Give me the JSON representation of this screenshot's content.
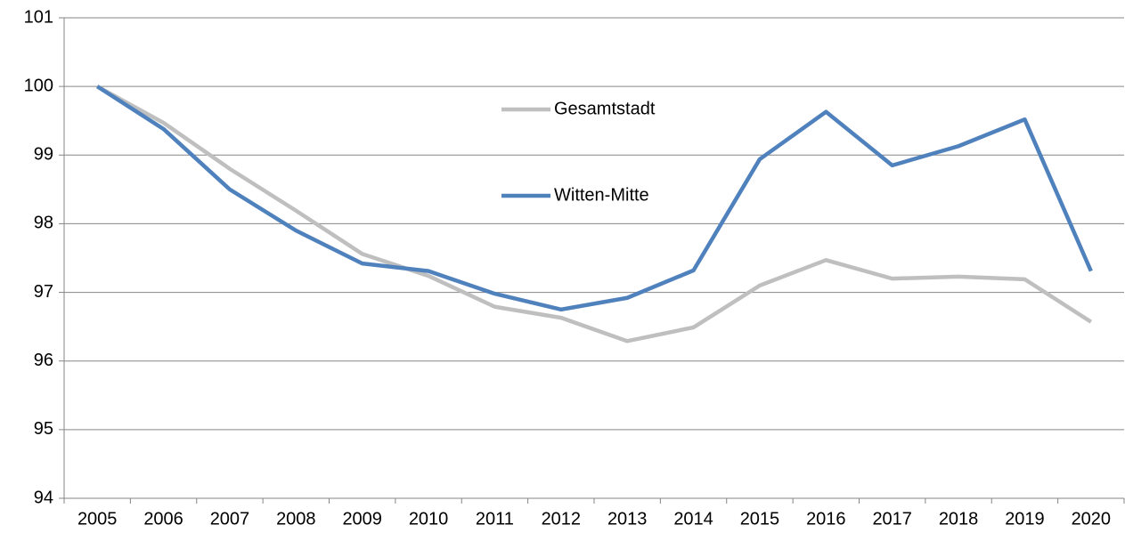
{
  "chart_data": {
    "type": "line",
    "categories": [
      "2005",
      "2006",
      "2007",
      "2008",
      "2009",
      "2010",
      "2011",
      "2012",
      "2013",
      "2014",
      "2015",
      "2016",
      "2017",
      "2018",
      "2019",
      "2020"
    ],
    "series": [
      {
        "name": "Gesamtstadt",
        "color": "#bfbfbf",
        "values": [
          100,
          99.47,
          98.8,
          98.19,
          97.56,
          97.24,
          96.79,
          96.63,
          96.29,
          96.49,
          97.1,
          97.47,
          97.2,
          97.23,
          97.19,
          96.57
        ]
      },
      {
        "name": "Witten-Mitte",
        "color": "#4f81bd",
        "values": [
          100,
          99.38,
          98.5,
          97.9,
          97.42,
          97.31,
          96.98,
          96.75,
          96.92,
          97.32,
          98.94,
          99.63,
          98.85,
          99.13,
          99.52,
          97.31
        ]
      }
    ],
    "ylim": [
      94,
      101
    ],
    "yticks": [
      94,
      95,
      96,
      97,
      98,
      99,
      100,
      101
    ],
    "grid": true
  }
}
